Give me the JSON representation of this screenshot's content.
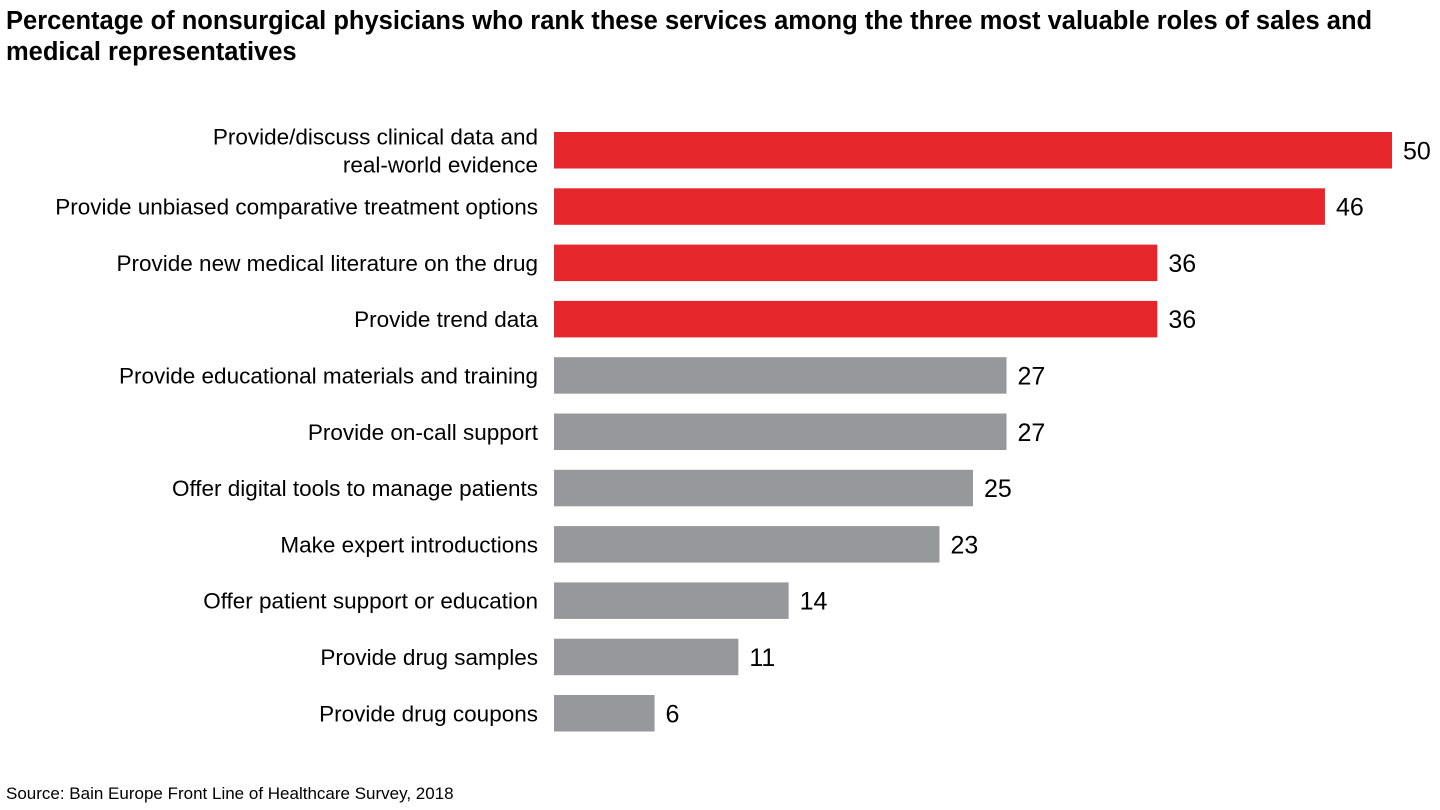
{
  "chart_data": {
    "type": "bar",
    "orientation": "horizontal",
    "title": "Percentage of nonsurgical physicians who rank these services among the three most valuable roles of sales and medical representatives",
    "categories": [
      [
        "Provide/discuss clinical data and",
        "real-world evidence"
      ],
      [
        "Provide unbiased comparative treatment options"
      ],
      [
        "Provide new medical literature on the drug"
      ],
      [
        "Provide trend data"
      ],
      [
        "Provide educational materials and training"
      ],
      [
        "Provide on-call support"
      ],
      [
        "Offer digital tools to manage patients"
      ],
      [
        "Make expert introductions"
      ],
      [
        "Offer patient support or education"
      ],
      [
        "Provide drug samples"
      ],
      [
        "Provide drug coupons"
      ]
    ],
    "values": [
      50,
      46,
      36,
      36,
      27,
      27,
      25,
      23,
      14,
      11,
      6
    ],
    "highlighted": [
      true,
      true,
      true,
      true,
      false,
      false,
      false,
      false,
      false,
      false,
      false
    ],
    "colors": {
      "highlight": "#e5262a",
      "default": "#97989b"
    },
    "xlim": [
      0,
      50
    ],
    "grid": false,
    "data_labels": true,
    "source": "Source: Bain Europe Front Line of Healthcare Survey, 2018"
  }
}
